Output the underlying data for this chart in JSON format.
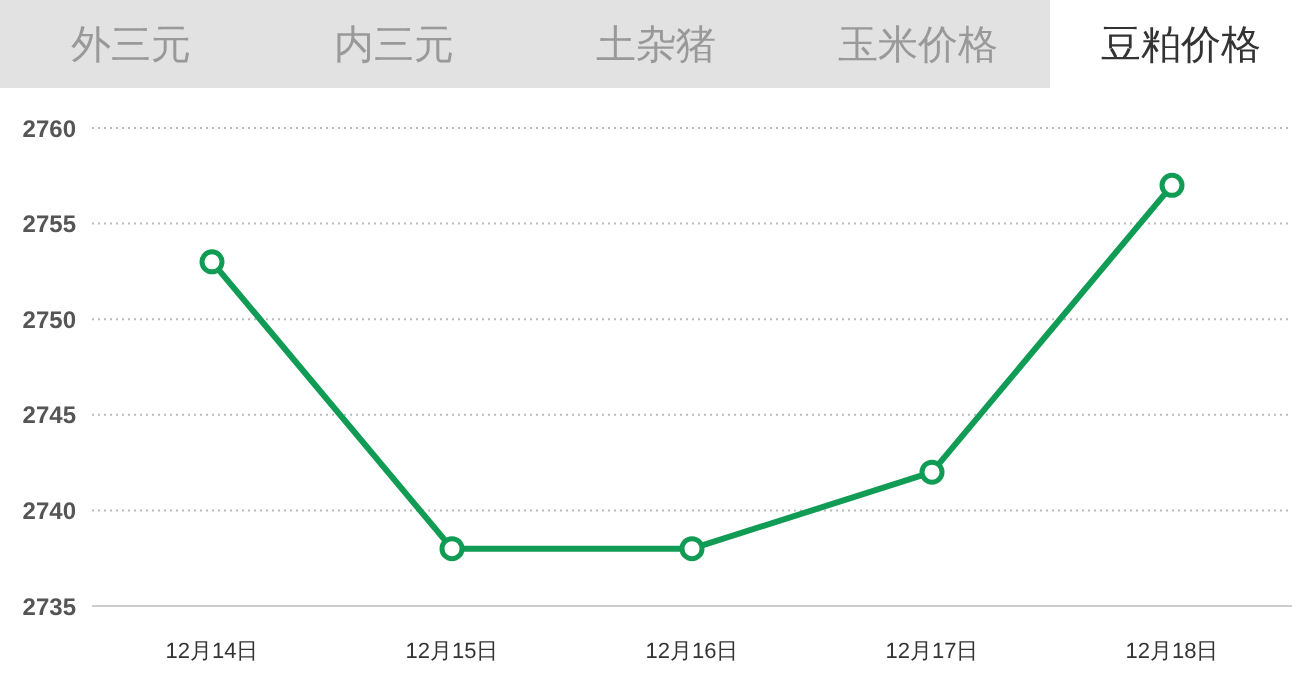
{
  "chart_data": {
    "type": "line",
    "title": "豆粕价格",
    "annotations": [
      "外三元",
      "内三元",
      "土杂猪",
      "玉米价格"
    ],
    "categories": [
      "12月14日",
      "12月15日",
      "12月16日",
      "12月17日",
      "12月18日"
    ],
    "series": [
      {
        "color": "#119c55",
        "values": [
          2753,
          2738,
          2738,
          2742,
          2757
        ]
      }
    ],
    "ylim": [
      2735,
      2760
    ],
    "yticks": [
      2735,
      2740,
      2745,
      2750,
      2755,
      2760
    ],
    "grid": "y",
    "marker": "circle",
    "line_style": "solid"
  }
}
